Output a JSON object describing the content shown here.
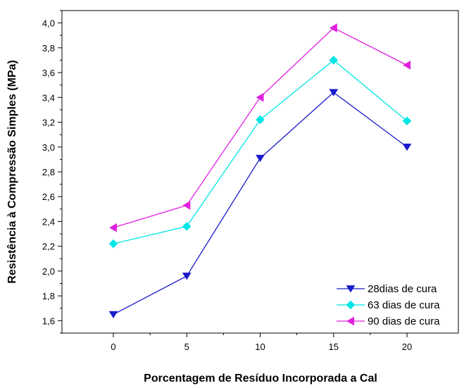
{
  "chart_data": {
    "type": "line",
    "xlabel": "Porcentagem de Resíduo Incorporada a Cal",
    "ylabel": "Resistência à Compressão Simples (MPa)",
    "x": [
      0,
      5,
      10,
      15,
      20
    ],
    "xticks": [
      "0",
      "5",
      "10",
      "15",
      "20"
    ],
    "xlim": [
      -3.5,
      23.5
    ],
    "yticks": [
      "1,6",
      "1,8",
      "2,0",
      "2,2",
      "2,4",
      "2,6",
      "2,8",
      "3,0",
      "3,2",
      "3,4",
      "3,6",
      "3,8",
      "4,0"
    ],
    "ylim": [
      1.5,
      4.1
    ],
    "grid": false,
    "legend_position": "bottom-right",
    "series": [
      {
        "name": "28dias de cura",
        "values": [
          1.65,
          1.96,
          2.91,
          3.44,
          3.0
        ],
        "color": "#1a1acc",
        "marker": "triangle-down"
      },
      {
        "name": "63 dias de cura",
        "values": [
          2.22,
          2.36,
          3.22,
          3.7,
          3.21
        ],
        "color": "#00e5e5",
        "marker": "diamond"
      },
      {
        "name": "90 dias de cura",
        "values": [
          2.35,
          2.53,
          3.4,
          3.96,
          3.66
        ],
        "color": "#e020e0",
        "marker": "triangle-left"
      }
    ]
  }
}
